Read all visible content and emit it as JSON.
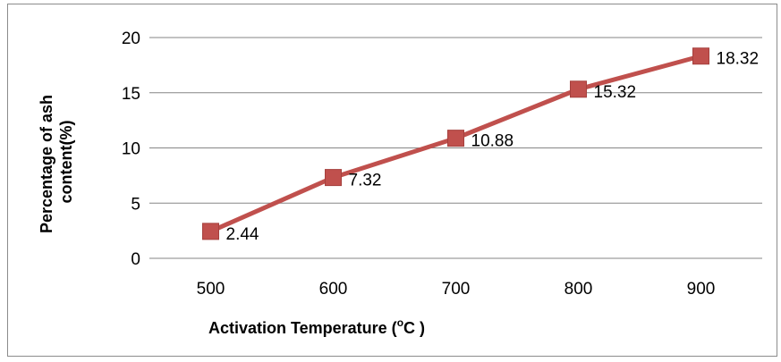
{
  "chart_data": {
    "type": "line",
    "title": "",
    "xlabel": "Activation Temperature (",
    "xlabel_sup": "o",
    "xlabel_suffix": "C )",
    "ylabel_line1": "Percentage of ash",
    "ylabel_line2": "content(%)",
    "categories": [
      "500",
      "600",
      "700",
      "800",
      "900"
    ],
    "series": [
      {
        "values": [
          2.44,
          7.32,
          10.88,
          15.32,
          18.32
        ],
        "data_labels": [
          "2.44",
          "7.32",
          "10.88",
          "15.32",
          "18.32"
        ],
        "color": "#C0504D",
        "marker": "square"
      }
    ],
    "ylim": [
      0,
      20
    ],
    "yticks": [
      "0",
      "5",
      "10",
      "15",
      "20"
    ],
    "ytick_values": [
      0,
      5,
      10,
      15,
      20
    ],
    "grid": "horizontal",
    "legend": "none",
    "colors": {
      "gridline": "#868686",
      "series": "#C0504D",
      "marker_edge": "#A5403D"
    }
  }
}
